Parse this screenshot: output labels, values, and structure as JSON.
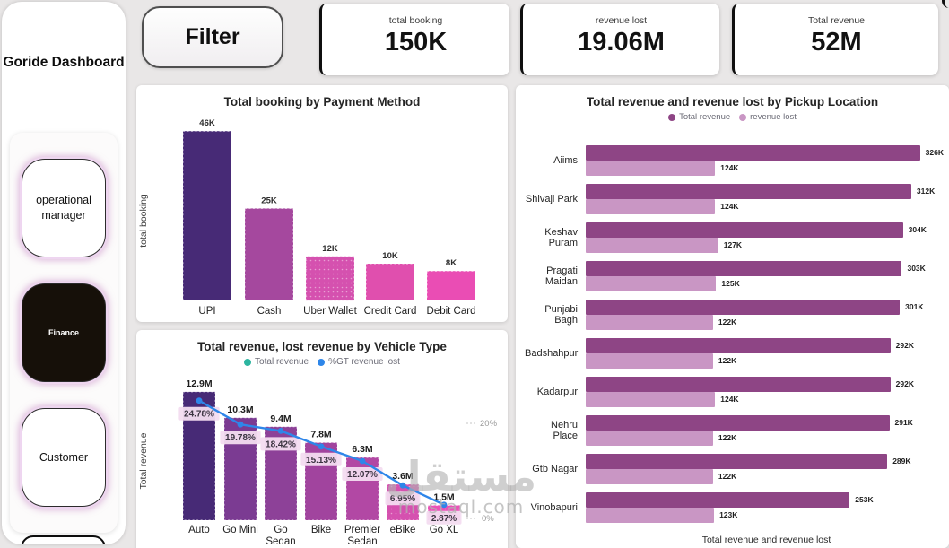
{
  "sidebar": {
    "title": "Goride Dashboard",
    "items": [
      {
        "label": "operational manager",
        "active": false
      },
      {
        "label": "Finance",
        "active": true
      },
      {
        "label": "Customer",
        "active": false
      }
    ]
  },
  "toolbar": {
    "filter_label": "Filter"
  },
  "kpis": [
    {
      "label": "total booking",
      "value": "150K"
    },
    {
      "label": "revenue lost",
      "value": "19.06M"
    },
    {
      "label": "Total revenue",
      "value": "52M"
    }
  ],
  "watermark": {
    "arabic": "مستقل",
    "latin": "mostaql.com"
  },
  "colors": {
    "page_background": "#e9e7e7",
    "card_background": "#ffffff",
    "accent_dark_purple": "#472a76",
    "accent_pink": "#ea4db4",
    "pickup_total_revenue": "#8e4585",
    "pickup_revenue_lost": "#c996c4",
    "line_blue": "#2e86e9",
    "legend_teal": "#2cb5a0"
  },
  "chart_data": [
    {
      "id": "payment",
      "type": "bar",
      "title": "Total booking by Payment Method",
      "ylabel": "total booking",
      "categories": [
        "UPI",
        "Cash",
        "Uber Wallet",
        "Credit Card",
        "Debit Card"
      ],
      "values": [
        46000,
        25000,
        12000,
        10000,
        8000
      ],
      "value_labels": [
        "46K",
        "25K",
        "12K",
        "10K",
        "8K"
      ],
      "bar_colors": [
        "#472a76",
        "#a5489e",
        "#d551af",
        "#e04fae",
        "#ea4db4"
      ],
      "dotted": [
        false,
        false,
        true,
        false,
        false
      ],
      "ylim": [
        0,
        48000
      ],
      "grid": false
    },
    {
      "id": "vehicle",
      "type": "bar+line",
      "title": "Total revenue, lost revenue by Vehicle Type",
      "ylabel": "Total revenue",
      "legend": [
        {
          "label": "Total revenue",
          "color": "#2cb5a0"
        },
        {
          "label": "%GT revenue lost",
          "color": "#2e86e9"
        }
      ],
      "categories": [
        "Auto",
        "Go Mini",
        "Go Sedan",
        "Bike",
        "Premier Sedan",
        "eBike",
        "Go XL"
      ],
      "bar_values_millions": [
        12.9,
        10.3,
        9.4,
        7.8,
        6.3,
        3.6,
        1.5
      ],
      "bar_value_labels": [
        "12.9M",
        "10.3M",
        "9.4M",
        "7.8M",
        "6.3M",
        "3.6M",
        "1.5M"
      ],
      "line_values_pct": [
        24.78,
        19.78,
        18.42,
        15.13,
        12.07,
        6.95,
        2.87
      ],
      "line_value_labels": [
        "24.78%",
        "19.78%",
        "18.42%",
        "15.13%",
        "12.07%",
        "6.95%",
        "2.87%"
      ],
      "bar_colors": [
        "#472a76",
        "#7b3b92",
        "#8d4198",
        "#a1449e",
        "#b248a4",
        "#d551af",
        "#ea52b8"
      ],
      "dotted": [
        false,
        false,
        false,
        false,
        false,
        true,
        true
      ],
      "line_color": "#2e86e9",
      "right_axis": {
        "top_label": "20%",
        "bottom_label": "0%",
        "max_pct": 20
      },
      "grid": false
    },
    {
      "id": "pickup",
      "type": "hbar",
      "title": "Total revenue and revenue lost by Pickup Location",
      "xlabel": "Total revenue and revenue lost",
      "legend": [
        {
          "label": "Total revenue",
          "color": "#8e4585"
        },
        {
          "label": "revenue lost",
          "color": "#c996c4"
        }
      ],
      "categories": [
        "Aiims",
        "Shivaji Park",
        "Keshav Puram",
        "Pragati Maidan",
        "Punjabi Bagh",
        "Badshahpur",
        "Kadarpur",
        "Nehru Place",
        "Gtb Nagar",
        "Vinobapuri"
      ],
      "series": [
        {
          "name": "Total revenue",
          "color": "#8e4585",
          "values": [
            326,
            312,
            304,
            303,
            301,
            292,
            292,
            291,
            289,
            253
          ],
          "labels": [
            "326K",
            "312K",
            "304K",
            "303K",
            "301K",
            "292K",
            "292K",
            "291K",
            "289K",
            "253K"
          ]
        },
        {
          "name": "revenue lost",
          "color": "#c996c4",
          "values": [
            124,
            124,
            127,
            125,
            122,
            122,
            124,
            122,
            122,
            123
          ],
          "labels": [
            "124K",
            "124K",
            "127K",
            "125K",
            "122K",
            "122K",
            "124K",
            "122K",
            "122K",
            "123K"
          ]
        }
      ],
      "xmax": 343,
      "grid": false
    }
  ]
}
